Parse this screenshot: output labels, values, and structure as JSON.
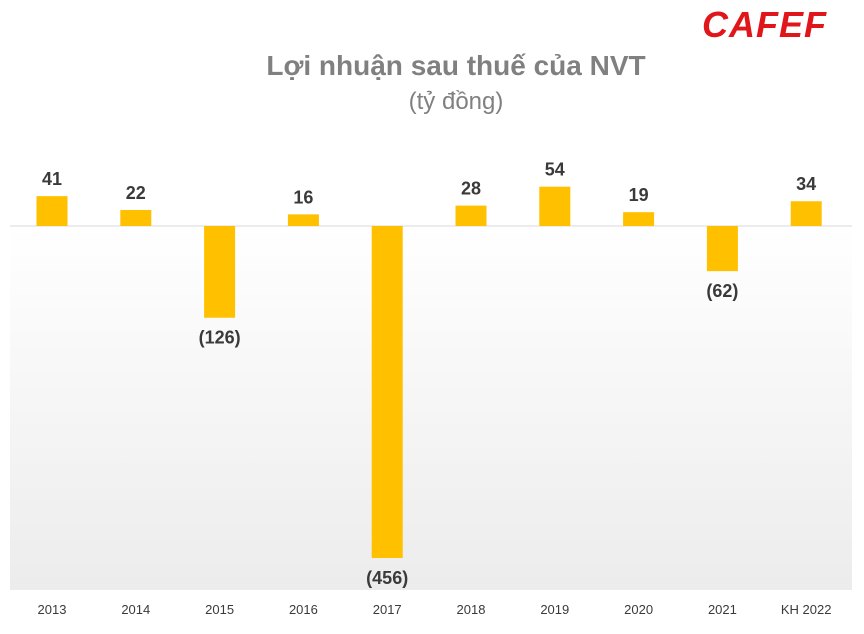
{
  "brand": {
    "logo_text": "CAFEF",
    "logo_color": "#e0161b"
  },
  "chart_data": {
    "type": "bar",
    "title": "Lợi nhuận sau thuế của NVT",
    "subtitle": "(tỷ đồng)",
    "categories": [
      "2013",
      "2014",
      "2015",
      "2016",
      "2017",
      "2018",
      "2019",
      "2020",
      "2021",
      "KH 2022"
    ],
    "values": [
      41,
      22,
      -126,
      16,
      -456,
      28,
      54,
      19,
      -62,
      34
    ],
    "data_labels": [
      "41",
      "22",
      "(126)",
      "16",
      "(456)",
      "28",
      "54",
      "19",
      "(62)",
      "34"
    ],
    "bar_color": "#ffc000",
    "ylim": [
      -500,
      120
    ],
    "grid": false,
    "legend": "none"
  }
}
